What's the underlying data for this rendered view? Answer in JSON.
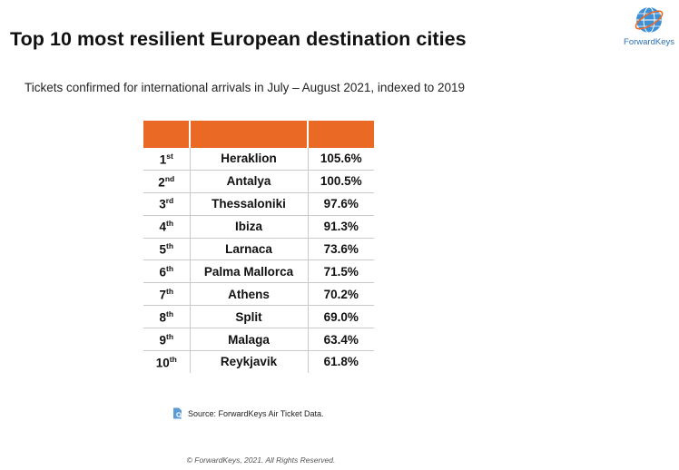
{
  "header": {
    "title": "Top 10 most resilient European destination cities",
    "subtitle": "Tickets confirmed for international arrivals in July – August 2021, indexed to 2019"
  },
  "logo": {
    "text": "ForwardKeys",
    "icon": "globe-icon"
  },
  "colors": {
    "accent": "#ea6a25",
    "brand": "#2a6fb0",
    "border": "#c9c9c9"
  },
  "table": {
    "headers": [
      "",
      "",
      ""
    ],
    "rows": [
      {
        "rank": "1",
        "suffix": "st",
        "city": "Heraklion",
        "value": "105.6%"
      },
      {
        "rank": "2",
        "suffix": "nd",
        "city": "Antalya",
        "value": "100.5%"
      },
      {
        "rank": "3",
        "suffix": "rd",
        "city": "Thessaloniki",
        "value": "97.6%"
      },
      {
        "rank": "4",
        "suffix": "th",
        "city": "Ibiza",
        "value": "91.3%"
      },
      {
        "rank": "5",
        "suffix": "th",
        "city": "Larnaca",
        "value": "73.6%"
      },
      {
        "rank": "6",
        "suffix": "th",
        "city": "Palma Mallorca",
        "value": "71.5%"
      },
      {
        "rank": "7",
        "suffix": "th",
        "city": "Athens",
        "value": "70.2%"
      },
      {
        "rank": "8",
        "suffix": "th",
        "city": "Split",
        "value": "69.0%"
      },
      {
        "rank": "9",
        "suffix": "th",
        "city": "Malaga",
        "value": "63.4%"
      },
      {
        "rank": "10",
        "suffix": "th",
        "city": "Reykjavik",
        "value": "61.8%"
      }
    ]
  },
  "source": {
    "icon": "document-search-icon",
    "text": "Source: ForwardKeys Air Ticket Data."
  },
  "footer": {
    "copyright": "© ForwardKeys, 2021. All Rights Reserved."
  }
}
